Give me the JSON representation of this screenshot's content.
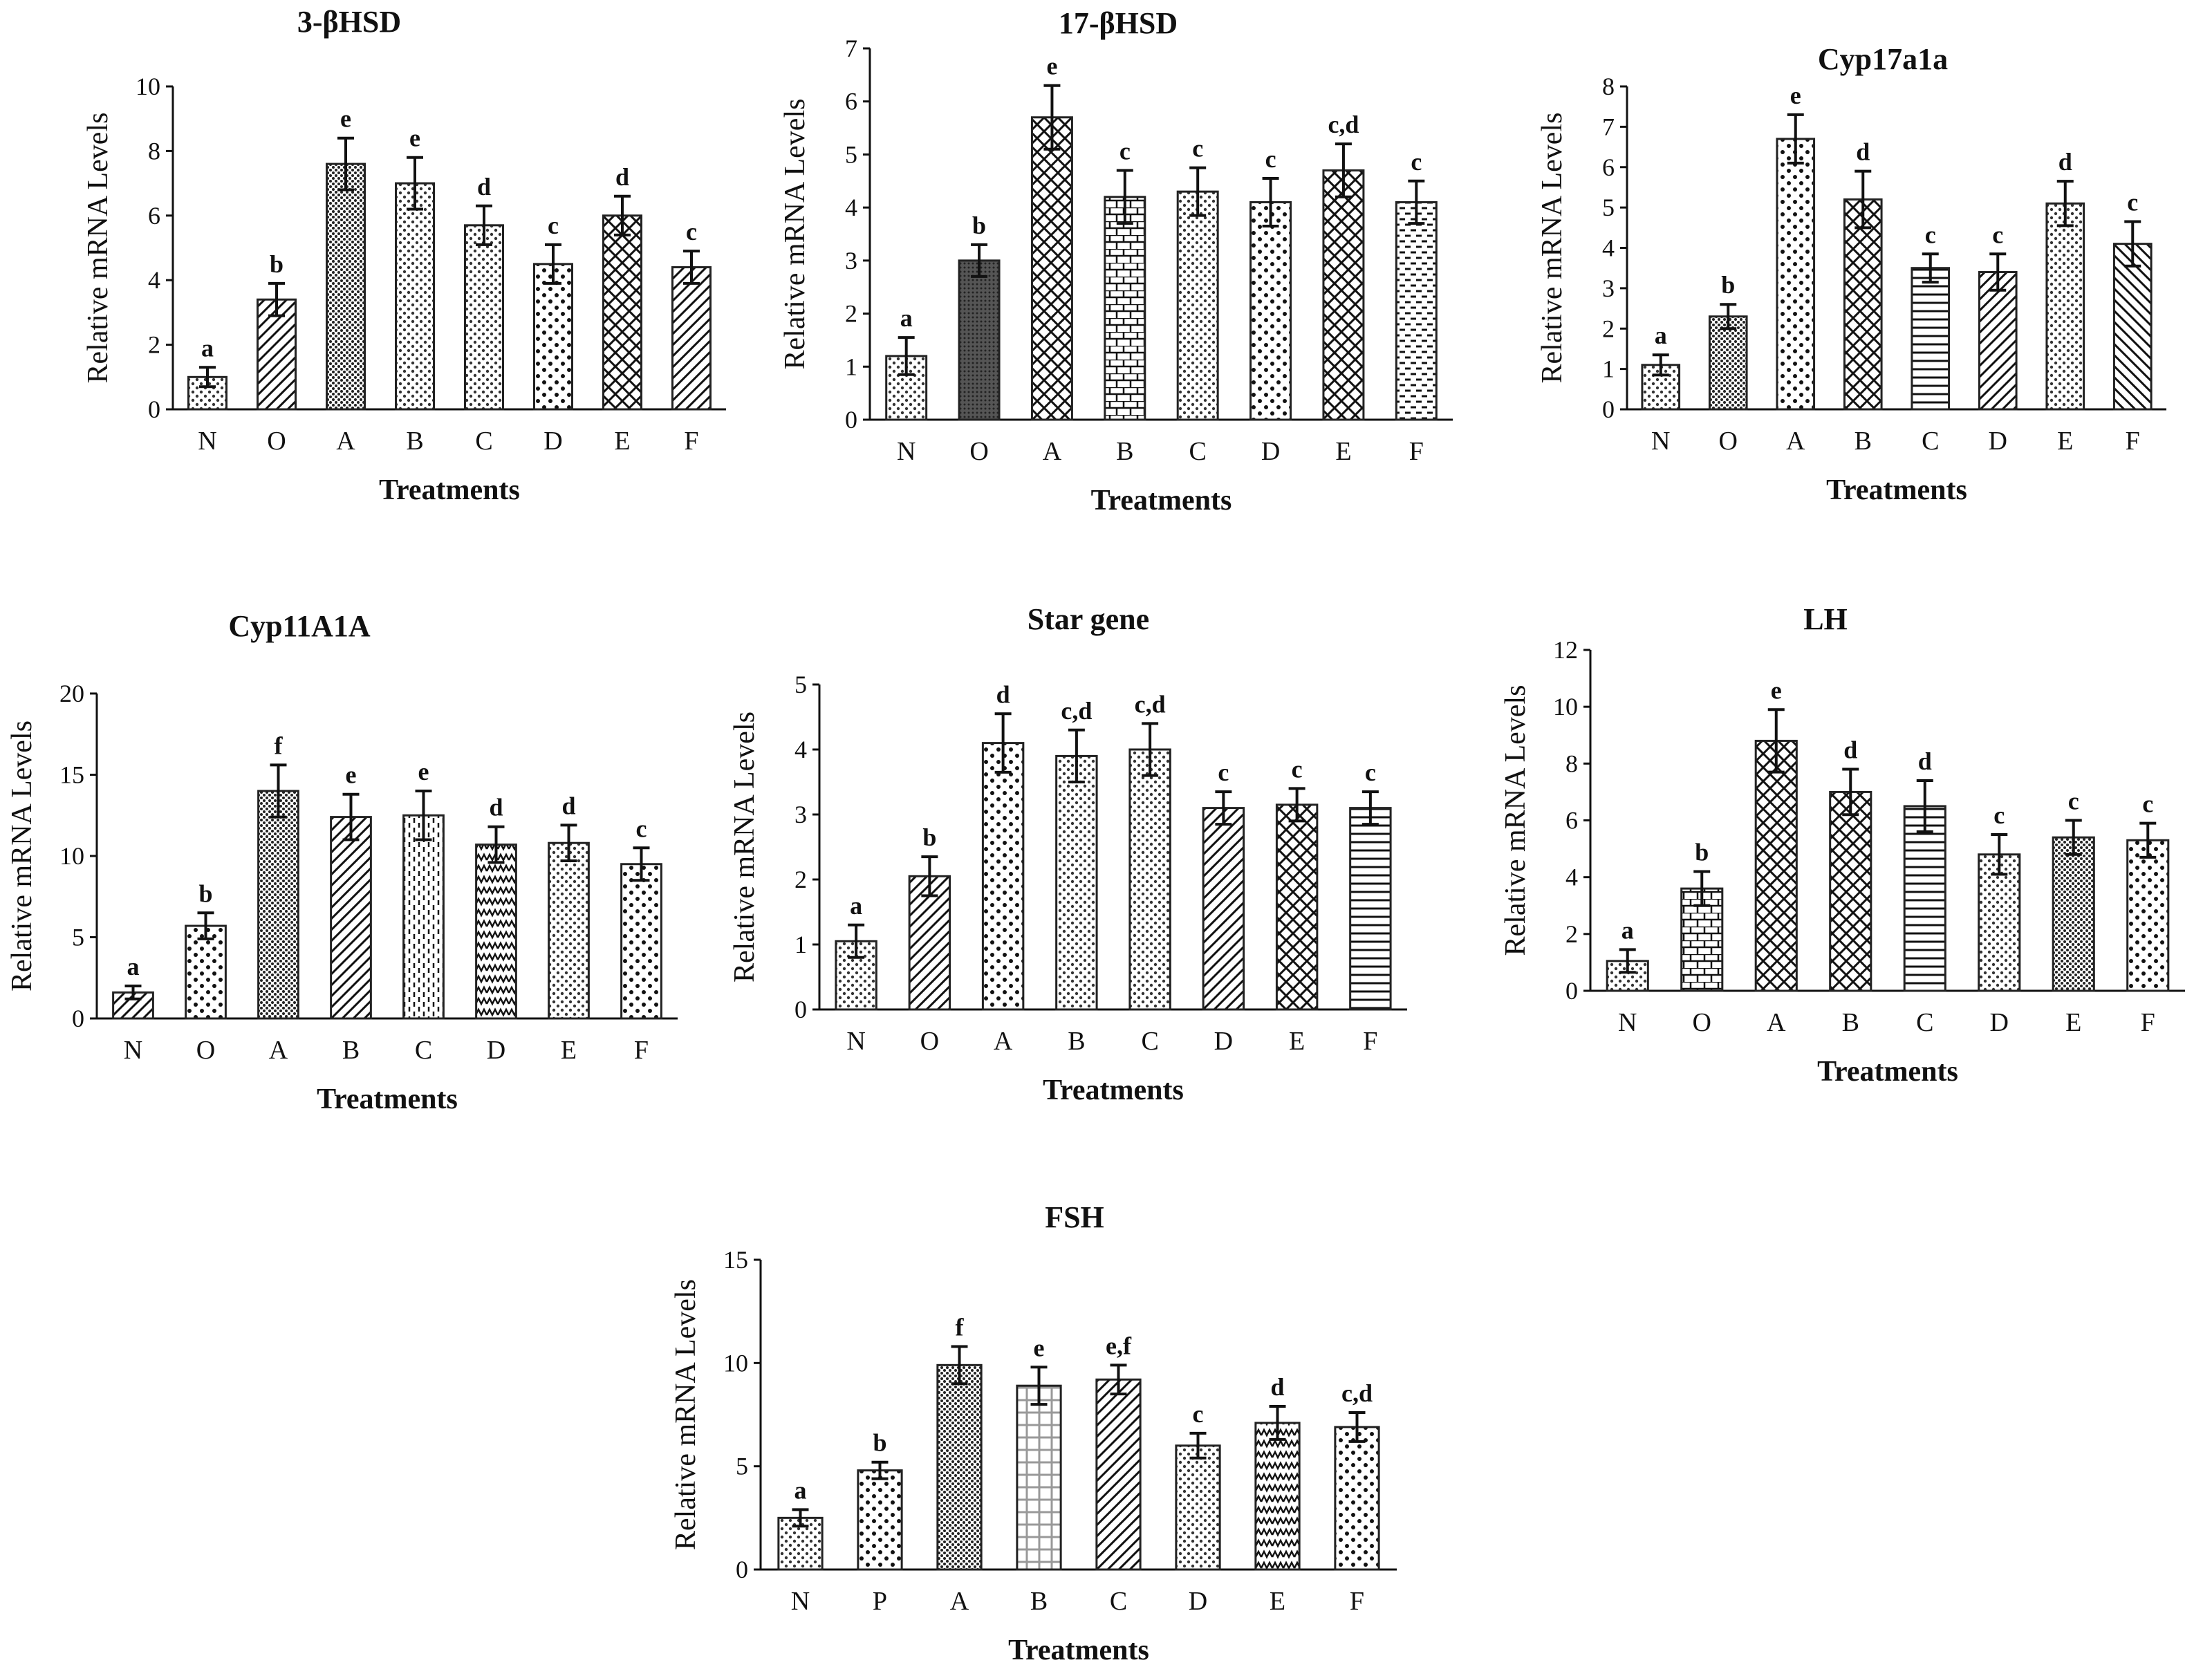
{
  "figure": {
    "background": "#ffffff",
    "bar_stroke": "#222222",
    "ink": "#111111"
  },
  "chart_data": [
    {
      "type": "bar",
      "title": "3-βHSD",
      "ylabel": "Relative mRNA Levels",
      "xlabel": "Treatments",
      "categories": [
        "N",
        "O",
        "A",
        "B",
        "C",
        "D",
        "E",
        "F"
      ],
      "values": [
        1.0,
        3.4,
        7.6,
        7.0,
        5.7,
        4.5,
        6.0,
        4.4
      ],
      "errors": [
        0.3,
        0.5,
        0.8,
        0.8,
        0.6,
        0.6,
        0.6,
        0.5
      ],
      "letters": [
        "a",
        "b",
        "e",
        "e",
        "d",
        "c",
        "d",
        "c"
      ],
      "ylim": [
        0,
        10
      ],
      "yticks": [
        0,
        2,
        4,
        6,
        8,
        10
      ],
      "patterns": [
        "dots",
        "diag-right",
        "dots-dense",
        "dots",
        "dots",
        "dots-sparse",
        "crosshatch-diag",
        "diag-right"
      ]
    },
    {
      "type": "bar",
      "title": "17-βHSD",
      "ylabel": "Relative mRNA Levels",
      "xlabel": "Treatments",
      "categories": [
        "N",
        "O",
        "A",
        "B",
        "C",
        "D",
        "E",
        "F"
      ],
      "values": [
        1.2,
        3.0,
        5.7,
        4.2,
        4.3,
        4.1,
        4.7,
        4.1
      ],
      "errors": [
        0.35,
        0.3,
        0.6,
        0.5,
        0.45,
        0.45,
        0.5,
        0.4
      ],
      "letters": [
        "a",
        "b",
        "e",
        "c",
        "c",
        "c",
        "c,d",
        "c"
      ],
      "ylim": [
        0,
        7
      ],
      "yticks": [
        0,
        1,
        2,
        3,
        4,
        5,
        6,
        7
      ],
      "patterns": [
        "dots",
        "dark-dense",
        "crosshatch-diag",
        "brick",
        "dots",
        "dots-sparse",
        "crosshatch-diag",
        "horizontal-dash"
      ]
    },
    {
      "type": "bar",
      "title": "Cyp17a1a",
      "ylabel": "Relative mRNA Levels",
      "xlabel": "Treatments",
      "categories": [
        "N",
        "O",
        "A",
        "B",
        "C",
        "D",
        "E",
        "F"
      ],
      "values": [
        1.1,
        2.3,
        6.7,
        5.2,
        3.5,
        3.4,
        5.1,
        4.1
      ],
      "errors": [
        0.25,
        0.3,
        0.6,
        0.7,
        0.35,
        0.45,
        0.55,
        0.55
      ],
      "letters": [
        "a",
        "b",
        "e",
        "d",
        "c",
        "c",
        "d",
        "c"
      ],
      "ylim": [
        0,
        8
      ],
      "yticks": [
        0,
        1,
        2,
        3,
        4,
        5,
        6,
        7,
        8
      ],
      "patterns": [
        "dots",
        "dots-dense",
        "dots-sparse",
        "crosshatch-diag",
        "horizontal",
        "diag-right",
        "dots",
        "diag-left"
      ]
    },
    {
      "type": "bar",
      "title": "Cyp11A1A",
      "ylabel": "Relative mRNA Levels",
      "xlabel": "Treatments",
      "categories": [
        "N",
        "O",
        "A",
        "B",
        "C",
        "D",
        "E",
        "F"
      ],
      "values": [
        1.6,
        5.7,
        14.0,
        12.4,
        12.5,
        10.7,
        10.8,
        9.5
      ],
      "errors": [
        0.4,
        0.8,
        1.6,
        1.4,
        1.5,
        1.1,
        1.1,
        1.0
      ],
      "letters": [
        "a",
        "b",
        "f",
        "e",
        "e",
        "d",
        "d",
        "c"
      ],
      "ylim": [
        0,
        20
      ],
      "yticks": [
        0,
        5,
        10,
        15,
        20
      ],
      "patterns": [
        "diag-right",
        "dots-sparse",
        "dots-dense",
        "diag-right",
        "vertical-dash",
        "zigzag",
        "dots",
        "dots-sparse"
      ]
    },
    {
      "type": "bar",
      "title": "Star gene",
      "ylabel": "Relative mRNA Levels",
      "xlabel": "Treatments",
      "categories": [
        "N",
        "O",
        "A",
        "B",
        "C",
        "D",
        "E",
        "F"
      ],
      "values": [
        1.05,
        2.05,
        4.1,
        3.9,
        4.0,
        3.1,
        3.15,
        3.1
      ],
      "errors": [
        0.25,
        0.3,
        0.45,
        0.4,
        0.4,
        0.25,
        0.25,
        0.25
      ],
      "letters": [
        "a",
        "b",
        "d",
        "c,d",
        "c,d",
        "c",
        "c",
        "c"
      ],
      "ylim": [
        0,
        5
      ],
      "yticks": [
        0,
        1,
        2,
        3,
        4,
        5
      ],
      "patterns": [
        "dots",
        "diag-right",
        "dots-sparse",
        "dots",
        "dots",
        "diag-right",
        "crosshatch-diag",
        "horizontal"
      ]
    },
    {
      "type": "bar",
      "title": "LH",
      "ylabel": "Relative mRNA Levels",
      "xlabel": "Treatments",
      "categories": [
        "N",
        "O",
        "A",
        "B",
        "C",
        "D",
        "E",
        "F"
      ],
      "values": [
        1.05,
        3.6,
        8.8,
        7.0,
        6.5,
        4.8,
        5.4,
        5.3
      ],
      "errors": [
        0.4,
        0.6,
        1.1,
        0.8,
        0.9,
        0.7,
        0.6,
        0.6
      ],
      "letters": [
        "a",
        "b",
        "e",
        "d",
        "d",
        "c",
        "c",
        "c"
      ],
      "ylim": [
        0,
        12
      ],
      "yticks": [
        0,
        2,
        4,
        6,
        8,
        10,
        12
      ],
      "patterns": [
        "dots",
        "brick",
        "crosshatch-diag",
        "crosshatch-diag",
        "horizontal",
        "dots",
        "dots-dense",
        "dots-sparse"
      ]
    },
    {
      "type": "bar",
      "title": "FSH",
      "ylabel": "Relative mRNA Levels",
      "xlabel": "Treatments",
      "categories": [
        "N",
        "P",
        "A",
        "B",
        "C",
        "D",
        "E",
        "F"
      ],
      "values": [
        2.5,
        4.8,
        9.9,
        8.9,
        9.2,
        6.0,
        7.1,
        6.9
      ],
      "errors": [
        0.4,
        0.4,
        0.9,
        0.9,
        0.7,
        0.6,
        0.8,
        0.7
      ],
      "letters": [
        "a",
        "b",
        "f",
        "e",
        "e,f",
        "c",
        "d",
        "c,d"
      ],
      "ylim": [
        0,
        15
      ],
      "yticks": [
        0,
        5,
        10,
        15
      ],
      "patterns": [
        "dots",
        "dots-sparse",
        "dots-dense",
        "grid",
        "diag-right",
        "dots",
        "zigzag",
        "dots-sparse"
      ]
    }
  ]
}
